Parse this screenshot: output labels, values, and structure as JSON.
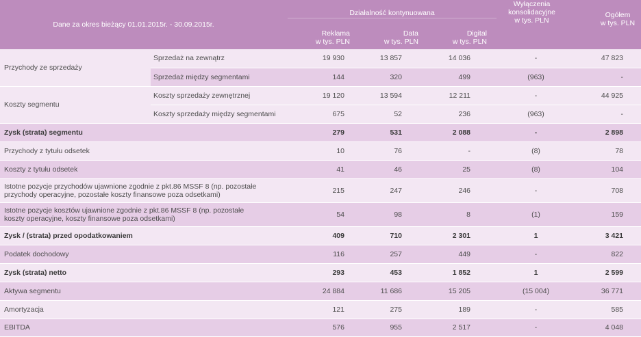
{
  "header": {
    "period": "Dane za okres bieżący 01.01.2015r. - 30.09.2015r.",
    "group": "Działalność kontynuowana",
    "columns": [
      {
        "line1": "Reklama",
        "line2": "w tys. PLN"
      },
      {
        "line1": "Data",
        "line2": "w tys. PLN"
      },
      {
        "line1": "Digital",
        "line2": "w tys. PLN"
      },
      {
        "line1": "Wyłączenia",
        "line2": "konsolidacyjne",
        "line3": "w tys. PLN"
      },
      {
        "line1": "Ogółem",
        "line2": "w tys. PLN"
      }
    ]
  },
  "rows": {
    "revenue": {
      "label": "Przychody ze sprzedaży",
      "external": {
        "label": "Sprzedaż na zewnątrz",
        "values": [
          "19 930",
          "13 857",
          "14 036",
          "-",
          "47 823"
        ]
      },
      "intersegment": {
        "label": "Sprzedaż między segmentami",
        "values": [
          "144",
          "320",
          "499",
          "(963)",
          "-"
        ]
      }
    },
    "costs": {
      "label": "Koszty segmentu",
      "external": {
        "label": "Koszty sprzedaży zewnętrznej",
        "values": [
          "19 120",
          "13 594",
          "12 211",
          "-",
          "44 925"
        ]
      },
      "intersegment": {
        "label": "Koszty sprzedaży między segmentami",
        "values": [
          "675",
          "52",
          "236",
          "(963)",
          "-"
        ]
      }
    },
    "segment_profit": {
      "label": "Zysk (strata) segmentu",
      "values": [
        "279",
        "531",
        "2 088",
        "-",
        "2 898"
      ]
    },
    "interest_income": {
      "label": "Przychody z tytułu odsetek",
      "values": [
        "10",
        "76",
        "-",
        "(8)",
        "78"
      ]
    },
    "interest_cost": {
      "label": "Koszty z tytułu odsetek",
      "values": [
        "41",
        "46",
        "25",
        "(8)",
        "104"
      ]
    },
    "other_income": {
      "label_line1": "Istotne pozycje przychodów ujawnione zgodnie z pkt.86 MSSF 8 (np. pozostałe",
      "label_line2": "przychody operacyjne, pozostałe koszty finansowe poza odsetkami)",
      "values": [
        "215",
        "247",
        "246",
        "-",
        "708"
      ]
    },
    "other_costs": {
      "label_line1": "Istotne pozycje kosztów ujawnione zgodnie z pkt.86 MSSF 8 (np. pozostałe",
      "label_line2": "koszty operacyjne, koszty finansowe poza odsetkami)",
      "values": [
        "54",
        "98",
        "8",
        "(1)",
        "159"
      ]
    },
    "pretax": {
      "label": "Zysk / (strata) przed opodatkowaniem",
      "values": [
        "409",
        "710",
        "2 301",
        "1",
        "3 421"
      ]
    },
    "tax": {
      "label": "Podatek dochodowy",
      "values": [
        "116",
        "257",
        "449",
        "-",
        "822"
      ]
    },
    "net": {
      "label": "Zysk (strata) netto",
      "values": [
        "293",
        "453",
        "1 852",
        "1",
        "2 599"
      ]
    },
    "assets": {
      "label": "Aktywa segmentu",
      "values": [
        "24 884",
        "11 686",
        "15 205",
        "(15 004)",
        "36 771"
      ]
    },
    "amortization": {
      "label": "Amortyzacja",
      "values": [
        "121",
        "275",
        "189",
        "-",
        "585"
      ]
    },
    "ebitda": {
      "label": "EBITDA",
      "values": [
        "576",
        "955",
        "2 517",
        "-",
        "4 048"
      ]
    }
  }
}
